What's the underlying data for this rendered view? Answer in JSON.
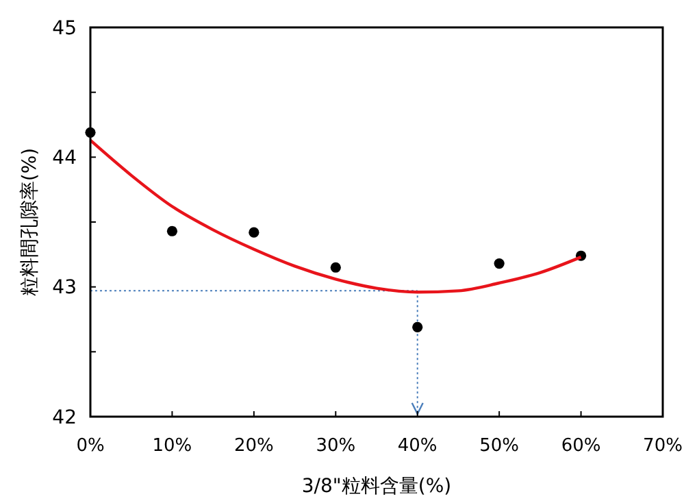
{
  "chart_data": {
    "type": "scatter",
    "xlabel": "3/8\"粒料含量(%)",
    "ylabel": "粒料間孔隙率(%)",
    "xlim": [
      0,
      70
    ],
    "xticks": [
      {
        "value": 0,
        "label": "0%"
      },
      {
        "value": 10,
        "label": "10%"
      },
      {
        "value": 20,
        "label": "20%"
      },
      {
        "value": 30,
        "label": "30%"
      },
      {
        "value": 40,
        "label": "40%"
      },
      {
        "value": 50,
        "label": "50%"
      },
      {
        "value": 60,
        "label": "60%"
      },
      {
        "value": 70,
        "label": "70%"
      }
    ],
    "ylim": [
      42,
      45
    ],
    "yticks": [
      42,
      {
        "value": 42.5,
        "label": null
      },
      43,
      {
        "value": 43.5,
        "label": null
      },
      44,
      {
        "value": 44.5,
        "label": null
      },
      45
    ],
    "grid": false,
    "marker": "circle",
    "ref_lines": [
      {
        "axis": "y",
        "value": 42.97,
        "color": "#4a7ebb",
        "line_style": "dotted"
      },
      {
        "axis": "x",
        "value": 40,
        "color": "#4a7ebb",
        "line_style": "dotted"
      }
    ],
    "series": [
      {
        "color": "#000000",
        "x": [
          0,
          10,
          20,
          30,
          40,
          50,
          60
        ],
        "values": [
          44.19,
          43.43,
          43.42,
          43.15,
          42.69,
          43.18,
          43.24
        ]
      },
      {
        "type": "line",
        "color": "#e8141b",
        "marker": "none",
        "x": [
          0,
          5,
          10,
          15,
          20,
          25,
          30,
          35,
          40,
          45,
          50,
          55,
          60
        ],
        "values": [
          44.13,
          43.86,
          43.62,
          43.44,
          43.29,
          43.16,
          43.06,
          42.99,
          42.96,
          42.97,
          43.03,
          43.11,
          43.23
        ]
      }
    ]
  }
}
